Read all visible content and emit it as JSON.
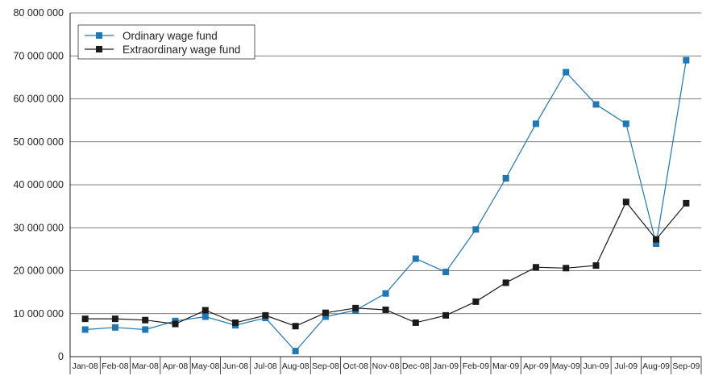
{
  "chart_data": {
    "type": "line",
    "title": "",
    "xlabel": "",
    "ylabel": "",
    "categories": [
      "Jan-08",
      "Feb-08",
      "Mar-08",
      "Apr-08",
      "May-08",
      "Jun-08",
      "Jul-08",
      "Aug-08",
      "Sep-08",
      "Oct-08",
      "Nov-08",
      "Dec-08",
      "Jan-09",
      "Feb-09",
      "Mar-09",
      "Apr-09",
      "May-09",
      "Jun-09",
      "Jul-09",
      "Aug-09",
      "Sep-09"
    ],
    "ylim": [
      0,
      80000000
    ],
    "yticks": [
      0,
      10000000,
      20000000,
      30000000,
      40000000,
      50000000,
      60000000,
      70000000,
      80000000
    ],
    "ytick_labels": [
      "0",
      "10 000 000",
      "20 000 000",
      "30 000 000",
      "40 000 000",
      "50 000 000",
      "60 000 000",
      "70 000 000",
      "80 000 000"
    ],
    "grid": true,
    "legend_position": "top-left",
    "series": [
      {
        "name": "Ordinary wage fund",
        "color": "#1f77b4",
        "values": [
          6300000,
          6800000,
          6300000,
          8300000,
          9300000,
          7300000,
          9000000,
          1300000,
          9300000,
          10800000,
          14700000,
          22800000,
          19700000,
          29600000,
          41500000,
          54200000,
          66200000,
          58700000,
          54200000,
          26300000,
          69000000
        ]
      },
      {
        "name": "Extraordinary wage fund",
        "color": "#1a1a1a",
        "values": [
          8800000,
          8800000,
          8500000,
          7600000,
          10800000,
          7900000,
          9600000,
          7100000,
          10200000,
          11300000,
          10900000,
          7900000,
          9600000,
          12800000,
          17200000,
          20800000,
          20600000,
          21200000,
          36000000,
          27300000,
          35700000
        ]
      }
    ]
  }
}
